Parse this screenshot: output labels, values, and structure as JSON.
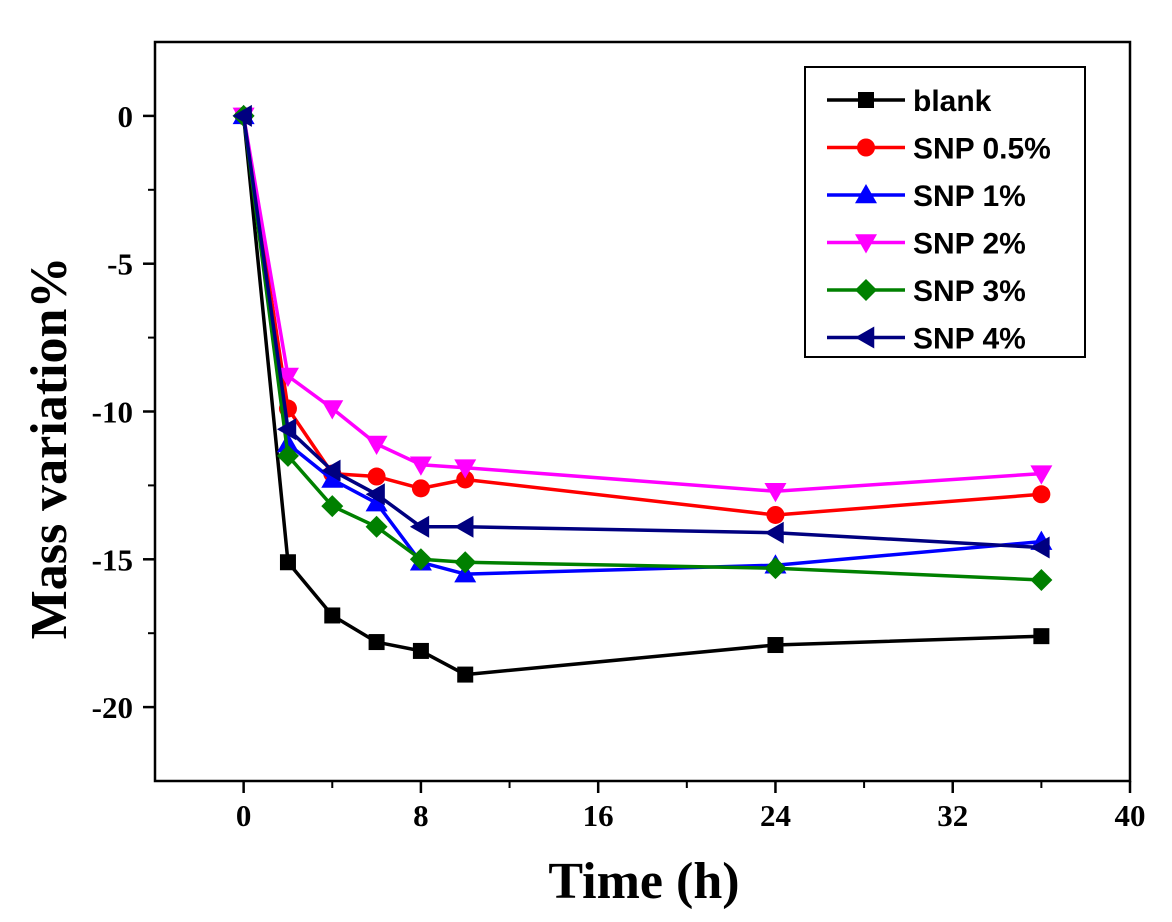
{
  "chart_data": {
    "type": "line",
    "title": "",
    "xlabel": "Time (h)",
    "ylabel": "Mass variation%",
    "xlim": [
      -4,
      40
    ],
    "ylim": [
      -22.5,
      2.5
    ],
    "xticks": [
      0,
      8,
      16,
      24,
      32,
      40
    ],
    "yticks": [
      0,
      -5,
      -10,
      -15,
      -20
    ],
    "legend_position": "top-right",
    "series": [
      {
        "name": "blank",
        "color": "#000000",
        "marker": "square",
        "x": [
          0,
          2,
          4,
          6,
          8,
          10,
          24,
          36
        ],
        "y": [
          0,
          -15.1,
          -16.9,
          -17.8,
          -18.1,
          -18.9,
          -17.9,
          -17.6
        ]
      },
      {
        "name": "SNP 0.5%",
        "color": "#ff0000",
        "marker": "circle",
        "x": [
          0,
          2,
          4,
          6,
          8,
          10,
          24,
          36
        ],
        "y": [
          0,
          -9.9,
          -12.1,
          -12.2,
          -12.6,
          -12.3,
          -13.5,
          -12.8
        ]
      },
      {
        "name": "SNP 1%",
        "color": "#0000ff",
        "marker": "triangle-up",
        "x": [
          0,
          2,
          4,
          6,
          8,
          10,
          24,
          36
        ],
        "y": [
          0,
          -11.1,
          -12.3,
          -13.1,
          -15.1,
          -15.5,
          -15.2,
          -14.4
        ]
      },
      {
        "name": "SNP 2%",
        "color": "#ff00ff",
        "marker": "triangle-down",
        "x": [
          0,
          2,
          4,
          6,
          8,
          10,
          24,
          36
        ],
        "y": [
          0,
          -8.8,
          -9.9,
          -11.1,
          -11.8,
          -11.9,
          -12.7,
          -12.1
        ]
      },
      {
        "name": "SNP 3%",
        "color": "#008000",
        "marker": "diamond",
        "x": [
          0,
          2,
          4,
          6,
          8,
          10,
          24,
          36
        ],
        "y": [
          0,
          -11.5,
          -13.2,
          -13.9,
          -15.0,
          -15.1,
          -15.3,
          -15.7
        ]
      },
      {
        "name": "SNP 4%",
        "color": "#000080",
        "marker": "triangle-left",
        "x": [
          0,
          2,
          4,
          6,
          8,
          10,
          24,
          36
        ],
        "y": [
          0,
          -10.6,
          -12.0,
          -12.8,
          -13.9,
          -13.9,
          -14.1,
          -14.6
        ]
      }
    ]
  }
}
